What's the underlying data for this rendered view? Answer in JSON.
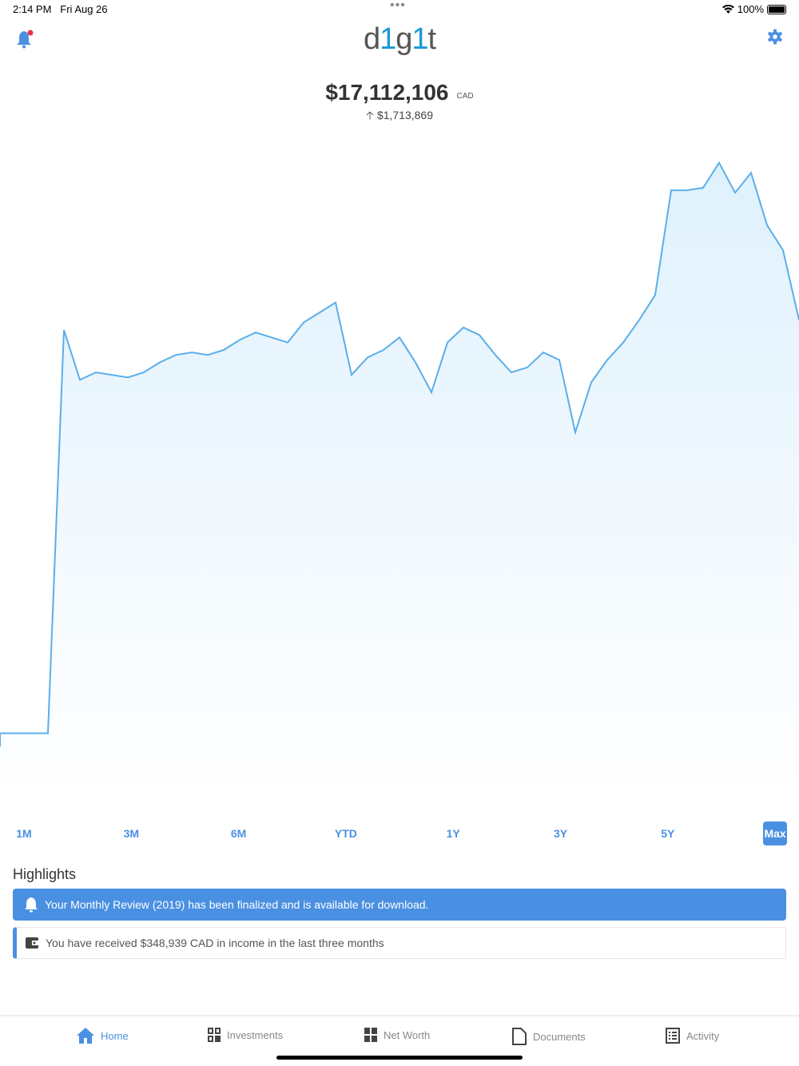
{
  "status": {
    "time": "2:14 PM",
    "date": "Fri Aug 26",
    "battery": "100%"
  },
  "header": {
    "logo": "d1g1t",
    "logo_parts": [
      "d",
      "1",
      "g",
      "1",
      "t"
    ]
  },
  "summary": {
    "total": "$17,112,106",
    "currency": "CAD",
    "change": "$1,713,869",
    "change_direction": "up"
  },
  "colors": {
    "accent": "#4a90e2",
    "line": "#5aaeea",
    "fill": "#e3f3fd",
    "notification_dot": "#e8334a"
  },
  "ranges": [
    {
      "label": "1M"
    },
    {
      "label": "3M"
    },
    {
      "label": "6M"
    },
    {
      "label": "YTD"
    },
    {
      "label": "1Y"
    },
    {
      "label": "3Y"
    },
    {
      "label": "5Y"
    },
    {
      "label": "Max",
      "active": true
    }
  ],
  "highlights": {
    "title": "Highlights",
    "items": [
      {
        "icon": "bell-icon",
        "text": "Your Monthly Review (2019) has been finalized and is available for download."
      },
      {
        "icon": "wallet-icon",
        "text": "You have received $348,939 CAD in income in the last three months"
      }
    ]
  },
  "tabs": [
    {
      "label": "Home",
      "icon": "home-icon",
      "active": true
    },
    {
      "label": "Investments",
      "icon": "grid-icon"
    },
    {
      "label": "Net Worth",
      "icon": "squares-icon"
    },
    {
      "label": "Documents",
      "icon": "document-icon"
    },
    {
      "label": "Activity",
      "icon": "list-icon"
    }
  ],
  "chart_data": {
    "type": "area",
    "title": "",
    "xlabel": "",
    "ylabel": "",
    "grid": false,
    "legend": "none",
    "ylim": [
      -2.1,
      24.8
    ],
    "values": [
      0.54,
      0.54,
      0.54,
      0.54,
      16.7,
      14.7,
      15.0,
      14.9,
      14.8,
      15.0,
      15.4,
      15.7,
      15.8,
      15.7,
      15.9,
      16.3,
      16.6,
      16.4,
      16.2,
      17.0,
      17.4,
      17.8,
      14.9,
      15.6,
      15.9,
      16.4,
      15.4,
      14.2,
      16.2,
      16.8,
      16.5,
      15.7,
      15.0,
      15.2,
      15.8,
      15.5,
      12.6,
      14.6,
      15.5,
      16.2,
      17.1,
      18.1,
      22.3,
      22.3,
      22.4,
      23.4,
      22.2,
      23.0,
      20.9,
      19.9,
      17.1
    ]
  }
}
